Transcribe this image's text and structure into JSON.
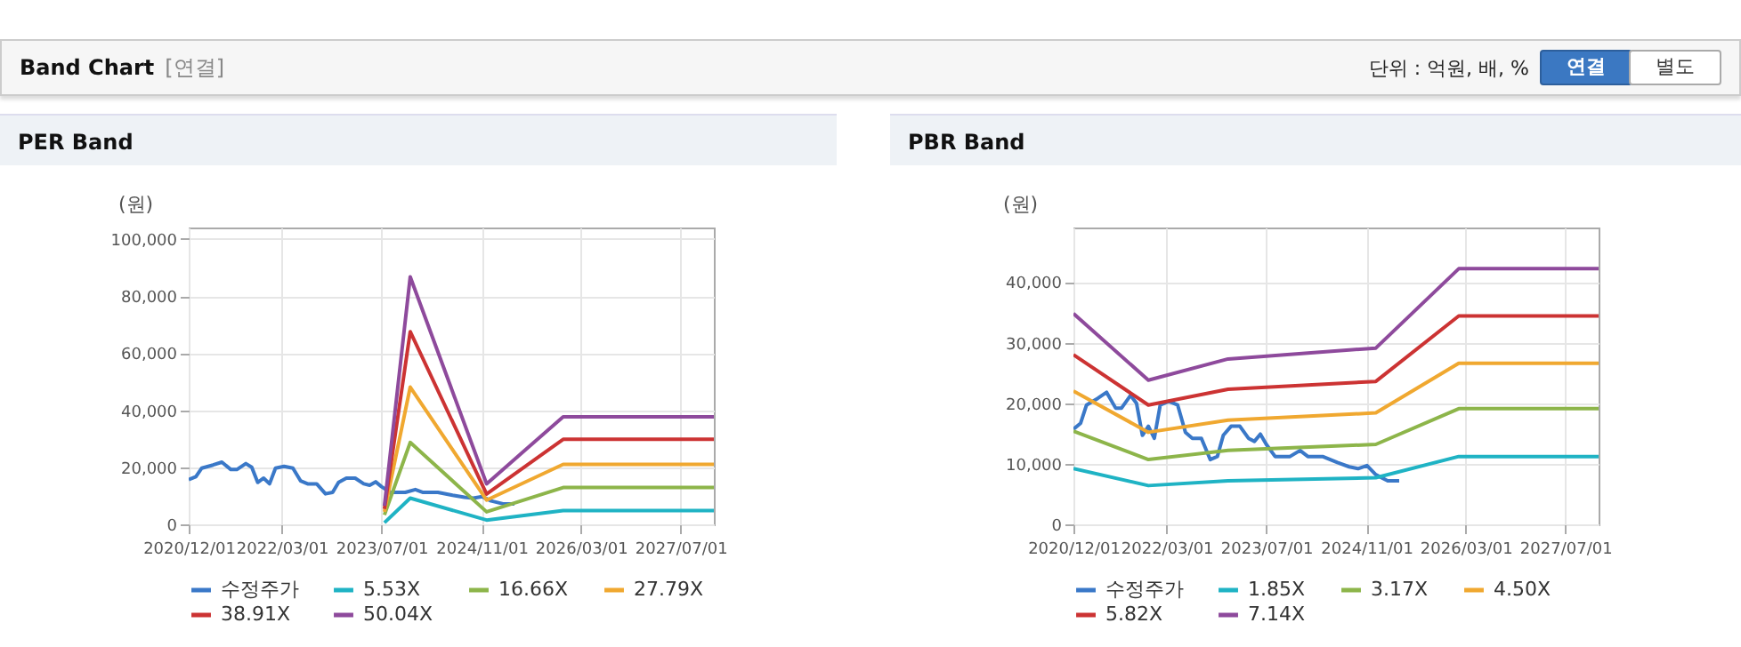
{
  "chart_data": [
    {
      "type": "other",
      "title": "Band Chart",
      "annotations": [
        "[연결]",
        "단위 : 억원, 배, %",
        "연결",
        "별도"
      ]
    },
    {
      "type": "line",
      "title": "PER Band",
      "ylabel": "(원)",
      "legend": "bottom",
      "grid": true,
      "marker": "none",
      "line_style": "solid",
      "xlim": [
        "2020-12-01",
        "2027-12-10"
      ],
      "xticks": [
        {
          "value": "2020-12-01",
          "label": "2020/12/01"
        },
        {
          "value": "2022-03-01",
          "label": "2022/03/01"
        },
        {
          "value": "2023-07-01",
          "label": "2023/07/01"
        },
        {
          "value": "2024-11-01",
          "label": "2024/11/01"
        },
        {
          "value": "2026-03-01",
          "label": "2026/03/01"
        },
        {
          "value": "2027-07-01",
          "label": "2027/07/01"
        }
      ],
      "ylim": [
        0,
        104000
      ],
      "yticks": [
        0,
        {
          "value": 20000,
          "label": "20,000"
        },
        {
          "value": 40000,
          "label": "40,000"
        },
        {
          "value": 60000,
          "label": "60,000"
        },
        {
          "value": 80000,
          "label": "80,000"
        },
        {
          "value": 100000,
          "label": "100,000"
        }
      ],
      "series": [
        {
          "name": "수정주가",
          "color": "#3a78c8",
          "x": [
            "2020-12-01",
            "2021-01-05",
            "2021-02-03",
            "2021-03-30",
            "2021-05-12",
            "2021-06-25",
            "2021-07-24",
            "2021-09-06",
            "2021-10-05",
            "2021-11-03",
            "2021-12-02",
            "2021-12-31",
            "2022-01-29",
            "2022-03-12",
            "2022-04-24",
            "2022-06-01",
            "2022-07-05",
            "2022-08-18",
            "2022-09-30",
            "2022-11-04",
            "2022-12-03",
            "2023-01-10",
            "2023-02-22",
            "2023-04-05",
            "2023-05-04",
            "2023-06-02",
            "2023-07-01",
            "2023-08-13",
            "2023-10-25",
            "2023-12-13",
            "2024-01-20",
            "2024-04-01",
            "2024-06-12",
            "2024-08-09",
            "2024-09-21",
            "2024-11-04",
            "2024-12-17",
            "2025-02-13",
            "2025-04-10"
          ],
          "values": [
            15700,
            16700,
            19700,
            20800,
            21800,
            19200,
            19200,
            21300,
            20000,
            14700,
            16200,
            14200,
            19700,
            20300,
            19700,
            15200,
            14200,
            14200,
            10700,
            11200,
            14700,
            16200,
            16200,
            14200,
            13700,
            14900,
            13200,
            11200,
            11200,
            12200,
            11200,
            11200,
            10200,
            9500,
            9200,
            9700,
            8200,
            7200,
            7200
          ]
        },
        {
          "name": "5.53X",
          "color": "#1fb3c4",
          "x": [
            "2023-07-15",
            "2023-11-18",
            "2024-11-25",
            "2025-12-04",
            "2027-12-10"
          ],
          "values": [
            600,
            9200,
            1500,
            4800,
            4800
          ]
        },
        {
          "name": "16.66X",
          "color": "#8db54a",
          "x": [
            "2023-07-15",
            "2023-11-18",
            "2024-11-25",
            "2025-12-04",
            "2027-12-10"
          ],
          "values": [
            3300,
            28700,
            4400,
            12900,
            12900
          ]
        },
        {
          "name": "27.79X",
          "color": "#f0a830",
          "x": [
            "2023-07-15",
            "2023-11-18",
            "2024-11-25",
            "2025-12-04",
            "2027-12-10"
          ],
          "values": [
            4400,
            48100,
            8500,
            21000,
            21000
          ]
        },
        {
          "name": "38.91X",
          "color": "#cc3333",
          "x": [
            "2023-07-15",
            "2023-11-18",
            "2024-11-25",
            "2025-12-04",
            "2027-12-10"
          ],
          "values": [
            5400,
            67500,
            10600,
            29800,
            29800
          ]
        },
        {
          "name": "50.04X",
          "color": "#8e4a9c",
          "x": [
            "2023-07-15",
            "2023-11-18",
            "2024-11-25",
            "2025-12-04",
            "2027-12-10"
          ],
          "values": [
            6500,
            86700,
            14200,
            37700,
            37700
          ]
        }
      ]
    },
    {
      "type": "line",
      "title": "PBR Band",
      "ylabel": "(원)",
      "legend": "bottom",
      "grid": true,
      "marker": "none",
      "line_style": "solid",
      "xlim": [
        "2020-12-01",
        "2027-12-10"
      ],
      "xticks": [
        {
          "value": "2020-12-01",
          "label": "2020/12/01"
        },
        {
          "value": "2022-03-01",
          "label": "2022/03/01"
        },
        {
          "value": "2023-07-01",
          "label": "2023/07/01"
        },
        {
          "value": "2024-11-01",
          "label": "2024/11/01"
        },
        {
          "value": "2026-03-01",
          "label": "2026/03/01"
        },
        {
          "value": "2027-07-01",
          "label": "2027/07/01"
        }
      ],
      "ylim": [
        0,
        49000
      ],
      "yticks": [
        0,
        {
          "value": 10000,
          "label": "10,000"
        },
        {
          "value": 20000,
          "label": "20,000"
        },
        {
          "value": 30000,
          "label": "30,000"
        },
        {
          "value": 40000,
          "label": "40,000"
        }
      ],
      "series": [
        {
          "name": "수정주가",
          "color": "#3a78c8",
          "x": [
            "2020-12-01",
            "2021-01-05",
            "2021-02-03",
            "2021-03-30",
            "2021-05-12",
            "2021-06-25",
            "2021-07-24",
            "2021-09-06",
            "2021-10-05",
            "2021-11-03",
            "2021-12-02",
            "2021-12-31",
            "2022-01-29",
            "2022-03-12",
            "2022-04-24",
            "2022-06-01",
            "2022-07-05",
            "2022-08-18",
            "2022-09-30",
            "2022-11-04",
            "2022-12-03",
            "2023-01-10",
            "2023-02-22",
            "2023-04-05",
            "2023-05-04",
            "2023-06-02",
            "2023-07-01",
            "2023-08-13",
            "2023-10-25",
            "2023-12-13",
            "2024-01-20",
            "2024-04-01",
            "2024-06-12",
            "2024-08-09",
            "2024-09-21",
            "2024-11-04",
            "2024-12-17",
            "2025-02-13",
            "2025-04-10"
          ],
          "values": [
            15700,
            16700,
            19700,
            20800,
            21800,
            19200,
            19200,
            21300,
            20000,
            14700,
            16200,
            14200,
            19700,
            20300,
            19700,
            15200,
            14200,
            14200,
            10700,
            11200,
            14700,
            16200,
            16200,
            14200,
            13700,
            14900,
            13200,
            11200,
            11200,
            12200,
            11200,
            11200,
            10200,
            9500,
            9200,
            9700,
            8200,
            7200,
            7200
          ]
        },
        {
          "name": "1.85X",
          "color": "#1fb3c4",
          "x": [
            "2020-12-01",
            "2021-12-02",
            "2022-12-26",
            "2024-12-17",
            "2026-01-26",
            "2027-12-10"
          ],
          "values": [
            9200,
            6400,
            7200,
            7700,
            11200,
            11200
          ]
        },
        {
          "name": "3.17X",
          "color": "#8db54a",
          "x": [
            "2020-12-01",
            "2021-12-02",
            "2022-12-26",
            "2024-12-17",
            "2026-01-26",
            "2027-12-10"
          ],
          "values": [
            15400,
            10700,
            12200,
            13200,
            19100,
            19100
          ]
        },
        {
          "name": "4.50X",
          "color": "#f0a830",
          "x": [
            "2020-12-01",
            "2021-12-02",
            "2022-12-26",
            "2024-12-17",
            "2026-01-26",
            "2027-12-10"
          ],
          "values": [
            22000,
            15200,
            17200,
            18400,
            26600,
            26600
          ]
        },
        {
          "name": "5.82X",
          "color": "#cc3333",
          "x": [
            "2020-12-01",
            "2021-12-02",
            "2022-12-26",
            "2024-12-17",
            "2026-01-26",
            "2027-12-10"
          ],
          "values": [
            28000,
            19700,
            22300,
            23600,
            34400,
            34400
          ]
        },
        {
          "name": "7.14X",
          "color": "#8e4a9c",
          "x": [
            "2020-12-01",
            "2021-12-02",
            "2022-12-26",
            "2024-12-17",
            "2026-01-26",
            "2027-12-10"
          ],
          "values": [
            34800,
            23800,
            27300,
            29100,
            42200,
            42200
          ]
        }
      ]
    }
  ]
}
